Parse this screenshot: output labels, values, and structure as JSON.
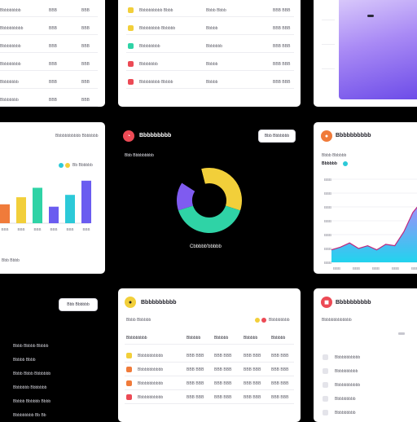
{
  "colors": {
    "yellow": "#f2cf3a",
    "green": "#2fd3a6",
    "red": "#ec4a55",
    "orange": "#f07b3a",
    "purple": "#7f5bf0",
    "teal": "#2cc9d8",
    "blue": "#6a5cf0"
  },
  "top_left": {
    "rows": [
      {
        "name": "Bbbbbbbbb",
        "value": "BBB"
      },
      {
        "name": "Bbbbbbbbbb",
        "value": "BBB"
      },
      {
        "name": "Bbbbbbbbb",
        "value": "BBB"
      },
      {
        "name": "Bbbbbbbbb",
        "value": "BBB"
      },
      {
        "name": "Bbbbbbbb",
        "value": "BBB"
      },
      {
        "name": "Bbbbbbbb",
        "value": "BBB"
      }
    ]
  },
  "top_middle": {
    "rows": [
      {
        "icon": "yellow-dot-icon",
        "name": "Bbbbbbbbbb Bbbb",
        "mid": "Bbbb Bbbb",
        "value": "BBB BBB"
      },
      {
        "icon": "yellow-dot-icon",
        "name": "Bbbbbbbbb Bbbbbb",
        "mid": "Bbbbb",
        "value": "BBB BBB"
      },
      {
        "icon": "green-dot-icon",
        "name": "Bbbbbbbbb",
        "mid": "Bbbbbbb",
        "value": "BBB BBB"
      },
      {
        "icon": "red-dot-icon",
        "name": "Bbbbbbbb",
        "mid": "Bbbbb",
        "value": "BBB BBB"
      },
      {
        "icon": "red-dot-icon",
        "name": "Bbbbbbbbb Bbbbb",
        "mid": "Bbbbb",
        "value": "BBB BBB"
      }
    ]
  },
  "bar_card": {
    "heading": "Bbbbbbbbbbb Bbbbbbb",
    "legend_label": "Bb Bbbbbb",
    "footer": "Bbb Bbbb",
    "chart_data": {
      "type": "bar",
      "categories": [
        "BBB",
        "BBB",
        "BBB",
        "BBB",
        "BBB",
        "BBB"
      ],
      "values": [
        16,
        22,
        30,
        14,
        24,
        36
      ],
      "colors": [
        "#f07b3a",
        "#f2cf3a",
        "#2fd3a6",
        "#6a5cf0",
        "#2cc9d8",
        "#6a5cf0"
      ],
      "ylim": [
        0,
        40
      ]
    }
  },
  "donut_panel": {
    "title": "Bbbbbbbbb",
    "subtitle": "Bbb Bbbbbbbbb",
    "button_label": "Bbb Bbbbbbb",
    "caption": "Cbbbbb'bbbbb",
    "chart_data": {
      "type": "pie",
      "values": [
        34,
        40,
        14,
        12
      ],
      "colors": [
        "#f2cf3a",
        "#2fd3a6",
        "#7f5bf0",
        "#000000"
      ]
    }
  },
  "area_card": {
    "title": "Bbbbbbbbbb",
    "subtitle": "Bbbb Bbbbbb",
    "value_label": "Bbbbbb",
    "y_ticks": [
      "BBB",
      "BBB",
      "BBB",
      "BBB",
      "BBB",
      "BBB",
      "BBB"
    ],
    "x_ticks": [
      "BBB",
      "BBB",
      "BBB",
      "BBB",
      "BBB"
    ],
    "chart_data": {
      "type": "area",
      "x": [
        0,
        1,
        2,
        3,
        4,
        5,
        6,
        7,
        8,
        9,
        10
      ],
      "y": [
        9,
        11,
        14,
        10,
        12,
        9,
        13,
        12,
        22,
        36,
        44
      ],
      "ylim": [
        0,
        60
      ]
    }
  },
  "bottom_left": {
    "button_label": "Bbb Bbbbbb",
    "items": [
      "Bbbb Bbbbb Bbbbb",
      "Bbbbb Bbbb",
      "Bbbb Bbbb Bbbbbbb",
      "Bbbbbbb Bbbbbbb",
      "Bbbbb Bbbbbb Bbbb",
      "Bbbbbbbbb Bb Bb"
    ]
  },
  "bottom_middle": {
    "title": "Bbbbbbbbbb",
    "subtitle": "Bbbb Bbbbbb",
    "legend_label": "Bbbbbbbbb",
    "columns": [
      "Bbbbbbbbb",
      "Bbbbbb",
      "Bbbbbb",
      "Bbbbbb",
      "Bbbbbb"
    ],
    "rows": [
      {
        "icon": "folder-icon",
        "name": "Bbbbbbbbbbb",
        "c2": "BBB BBB",
        "c3": "BBB BBB",
        "c4": "BBB BBB",
        "c5": "BBB BBB"
      },
      {
        "icon": "orange-square-icon",
        "name": "Bbbbbbbbbbb",
        "c2": "BBB BBB",
        "c3": "BBB BBB",
        "c4": "BBB BBB",
        "c5": "BBB BBB"
      },
      {
        "icon": "orange-square-icon",
        "name": "Bbbbbbbbbbb",
        "c2": "BBB BBB",
        "c3": "BBB BBB",
        "c4": "BBB BBB",
        "c5": "BBB BBB"
      },
      {
        "icon": "red-square-icon",
        "name": "Bbbbbbbbbbb",
        "c2": "BBB BBB",
        "c3": "BBB BBB",
        "c4": "BBB BBB",
        "c5": "BBB BBB"
      }
    ]
  },
  "bottom_right": {
    "title": "Bbbbbbbbbb",
    "subtitle": "Bbbbbbbbbbbbb",
    "items": [
      "Bbbbbbbbbbb",
      "Bbbbbbbbbb",
      "Bbbbbbbbbbb",
      "Bbbbbbbbb",
      "Bbbbbbbbb"
    ]
  }
}
